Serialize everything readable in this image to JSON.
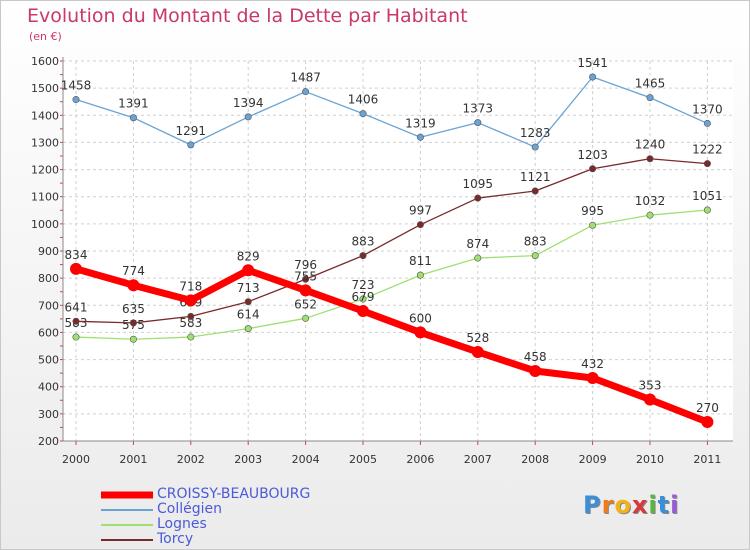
{
  "chart_data": {
    "type": "line",
    "title": "Evolution du Montant de la Dette par Habitant",
    "subtitle": "(en €)",
    "x": [
      "2000",
      "2001",
      "2002",
      "2003",
      "2004",
      "2005",
      "2006",
      "2007",
      "2008",
      "2009",
      "2010",
      "2011"
    ],
    "y_ticks": [
      200,
      300,
      400,
      500,
      600,
      700,
      800,
      900,
      1000,
      1100,
      1200,
      1300,
      1400,
      1500,
      1600
    ],
    "ylim": [
      200,
      1600
    ],
    "grid": true,
    "legend_position": "bottom-left",
    "series": [
      {
        "name": "CROISSY-BEAUBOURG",
        "color": "#ff0000",
        "values": [
          834,
          774,
          718,
          829,
          755,
          679,
          600,
          528,
          458,
          432,
          353,
          270
        ]
      },
      {
        "name": "Collégien",
        "color": "#6aa3d4",
        "values": [
          1458,
          1391,
          1291,
          1394,
          1487,
          1406,
          1319,
          1373,
          1283,
          1541,
          1465,
          1370
        ]
      },
      {
        "name": "Lognes",
        "color": "#9fe070",
        "values": [
          583,
          575,
          583,
          614,
          652,
          723,
          811,
          874,
          883,
          995,
          1032,
          1051
        ]
      },
      {
        "name": "Torcy",
        "color": "#7a2a2a",
        "values": [
          641,
          635,
          659,
          713,
          796,
          883,
          997,
          1095,
          1121,
          1203,
          1240,
          1222
        ]
      }
    ]
  },
  "logo": {
    "letters": [
      "P",
      "r",
      "o",
      "x",
      "i",
      "t",
      "i"
    ],
    "colors": [
      "#3a8fd8",
      "#f07b1c",
      "#f2b21c",
      "#d83a3a",
      "#57b83a",
      "#3a8fd8",
      "#9a5ad8"
    ]
  }
}
